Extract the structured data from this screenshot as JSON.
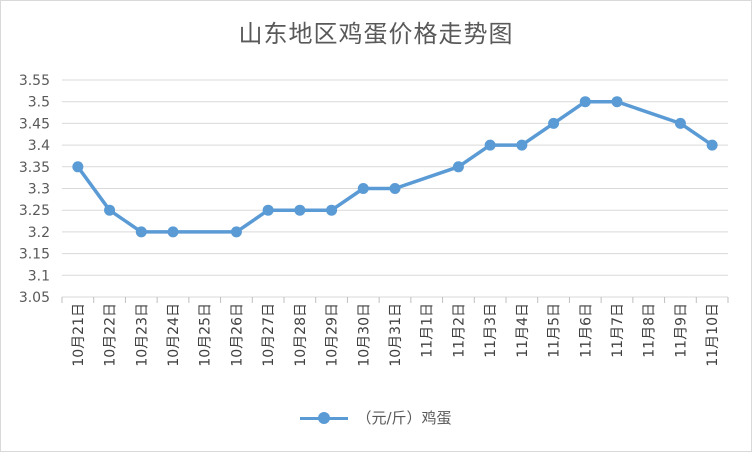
{
  "chart_data": {
    "type": "line",
    "title": "山东地区鸡蛋价格走势图",
    "xlabel": "",
    "ylabel": "",
    "ylim": [
      3.05,
      3.55
    ],
    "yticks": [
      "3.05",
      "3.1",
      "3.15",
      "3.2",
      "3.25",
      "3.3",
      "3.35",
      "3.4",
      "3.45",
      "3.5",
      "3.55"
    ],
    "categories": [
      "10月21日",
      "10月22日",
      "10月23日",
      "10月24日",
      "10月25日",
      "10月26日",
      "10月27日",
      "10月28日",
      "10月29日",
      "10月30日",
      "10月31日",
      "11月1日",
      "11月2日",
      "11月3日",
      "11月4日",
      "11月5日",
      "11月6日",
      "11月7日",
      "11月8日",
      "11月9日",
      "11月10日"
    ],
    "series": [
      {
        "name": "（元/斤）鸡蛋",
        "color": "#5b9bd5",
        "values": [
          3.35,
          3.25,
          3.2,
          3.2,
          null,
          3.2,
          3.25,
          3.25,
          3.25,
          3.3,
          3.3,
          null,
          3.35,
          3.4,
          3.4,
          3.45,
          3.5,
          3.5,
          null,
          3.45,
          3.4
        ]
      }
    ],
    "grid": true,
    "legend": "bottom"
  }
}
